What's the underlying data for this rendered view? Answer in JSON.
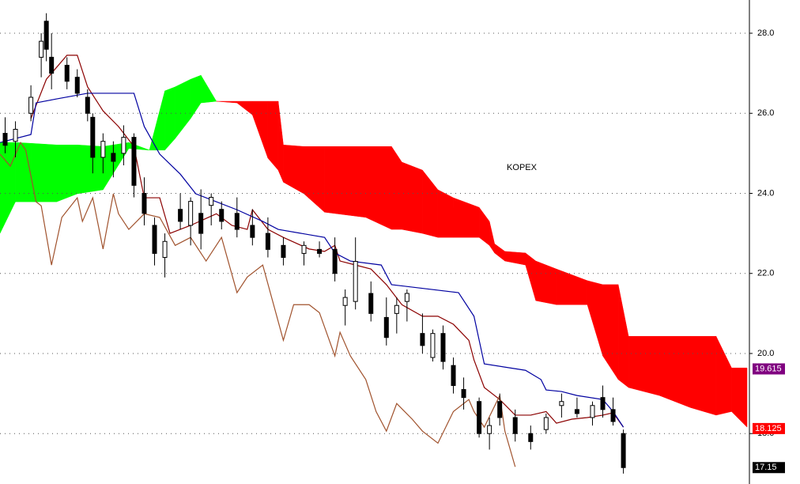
{
  "chart_data": {
    "type": "candlestick",
    "title": "KOPEX",
    "xlim": [
      0,
      145
    ],
    "ylim": [
      16.74,
      28.83
    ],
    "yticks": [
      {
        "value": 18,
        "label": "18.0"
      },
      {
        "value": 20,
        "label": "20.0"
      },
      {
        "value": 22,
        "label": "22.0"
      },
      {
        "value": 24,
        "label": "24.0"
      },
      {
        "value": 26,
        "label": "26.0"
      },
      {
        "value": 28,
        "label": "28.0"
      }
    ],
    "grid": true,
    "candles": {
      "up_color": "#ffffff",
      "down_color": "#000000",
      "x": [
        1,
        3,
        6,
        8,
        9,
        10,
        13,
        15,
        17,
        18,
        20,
        22,
        24,
        26,
        28,
        30,
        32,
        35,
        37,
        39,
        41,
        43,
        46,
        49,
        52,
        55,
        59,
        62,
        65,
        67,
        69,
        72,
        75,
        77,
        79,
        82,
        84,
        86,
        88,
        90,
        93,
        95,
        97,
        100,
        103,
        106,
        109,
        112,
        115,
        117,
        119,
        121
      ],
      "open": [
        25.5,
        25.3,
        26.0,
        27.4,
        28.3,
        27.4,
        27.2,
        26.9,
        26.4,
        25.9,
        24.9,
        25.0,
        25.0,
        25.4,
        24.0,
        23.2,
        22.4,
        23.6,
        23.2,
        23.5,
        23.7,
        23.6,
        23.5,
        23.2,
        23.0,
        22.7,
        22.5,
        22.6,
        22.6,
        21.2,
        21.3,
        21.5,
        20.9,
        21.0,
        21.3,
        20.5,
        19.9,
        20.5,
        19.7,
        19.1,
        18.8,
        18.0,
        18.8,
        18.4,
        18.0,
        18.1,
        18.7,
        18.6,
        18.4,
        18.9,
        18.6,
        18.0
      ],
      "high": [
        25.9,
        25.8,
        26.7,
        28.0,
        28.5,
        28.0,
        27.4,
        27.1,
        26.6,
        26.0,
        25.5,
        25.3,
        25.7,
        25.5,
        24.4,
        23.4,
        23.0,
        24.0,
        23.9,
        24.1,
        24.0,
        23.8,
        23.9,
        23.6,
        23.4,
        22.9,
        22.8,
        22.8,
        22.9,
        21.6,
        22.9,
        21.8,
        21.4,
        21.4,
        21.6,
        21.0,
        20.6,
        20.7,
        19.9,
        19.4,
        18.9,
        18.4,
        19.0,
        18.6,
        18.2,
        18.5,
        19.0,
        18.9,
        18.8,
        19.2,
        18.9,
        18.1
      ],
      "low": [
        25.0,
        24.9,
        25.8,
        26.9,
        27.3,
        26.6,
        26.6,
        26.4,
        25.8,
        24.5,
        24.5,
        24.4,
        24.7,
        23.9,
        23.2,
        22.2,
        21.9,
        23.1,
        22.7,
        22.6,
        23.2,
        23.1,
        22.9,
        22.7,
        22.4,
        22.2,
        22.2,
        22.4,
        21.8,
        20.7,
        21.1,
        20.8,
        20.2,
        20.5,
        20.8,
        20.0,
        19.8,
        19.6,
        19.0,
        18.6,
        17.9,
        17.6,
        18.2,
        17.8,
        17.6,
        18.0,
        18.4,
        18.4,
        18.2,
        18.4,
        18.2,
        17.0
      ],
      "close": [
        25.2,
        25.6,
        26.4,
        27.8,
        27.6,
        27.0,
        26.8,
        26.5,
        26.0,
        24.9,
        25.3,
        24.8,
        25.4,
        24.2,
        23.5,
        22.5,
        22.8,
        23.3,
        23.8,
        23.0,
        23.9,
        23.3,
        23.1,
        22.9,
        22.6,
        22.4,
        22.7,
        22.5,
        22.0,
        21.4,
        22.3,
        21.0,
        20.4,
        21.2,
        21.5,
        20.2,
        20.5,
        19.8,
        19.2,
        18.9,
        18.0,
        18.2,
        18.4,
        18.0,
        17.8,
        18.4,
        18.8,
        18.5,
        18.7,
        18.6,
        18.3,
        17.15
      ]
    },
    "cloud": {
      "up_color": "#00ff00",
      "down_color": "#ff0000",
      "x": [
        0,
        3,
        6,
        11,
        15,
        20,
        25,
        29,
        32,
        34,
        37,
        39,
        42,
        46,
        49,
        52,
        54,
        55,
        59,
        63,
        71,
        76,
        78,
        82,
        85,
        88,
        93,
        95,
        96,
        98,
        102,
        104,
        108,
        114,
        117,
        120,
        122,
        128,
        134,
        139,
        142,
        145
      ],
      "span_a": [
        25.27,
        25.27,
        25.25,
        25.21,
        25.21,
        25.17,
        25.27,
        25.08,
        26.56,
        26.66,
        26.85,
        26.95,
        26.3,
        26.26,
        25.96,
        24.88,
        24.58,
        24.28,
        23.99,
        23.53,
        23.4,
        23.1,
        23.1,
        23.0,
        22.9,
        22.9,
        22.9,
        22.7,
        22.51,
        22.31,
        22.21,
        21.32,
        21.22,
        21.22,
        19.94,
        19.35,
        19.15,
        18.95,
        18.65,
        18.46,
        18.55,
        18.16
      ],
      "span_b": [
        23.0,
        23.79,
        23.79,
        23.79,
        23.99,
        24.09,
        25.12,
        25.08,
        25.08,
        25.37,
        25.87,
        26.26,
        26.3,
        26.3,
        26.3,
        26.3,
        26.3,
        25.21,
        25.17,
        25.17,
        25.17,
        25.17,
        24.78,
        24.58,
        24.09,
        23.89,
        23.65,
        23.3,
        22.74,
        22.55,
        22.51,
        22.31,
        22.11,
        21.82,
        21.72,
        21.72,
        20.43,
        20.43,
        20.43,
        20.43,
        19.64,
        19.64
      ]
    },
    "series": [
      {
        "color": "#8b0000",
        "x": [
          6,
          9,
          13,
          15,
          17,
          20,
          23,
          26,
          28,
          31,
          33,
          37,
          42,
          45,
          48,
          49,
          52,
          55,
          60,
          63,
          65,
          66,
          69,
          72,
          75,
          78,
          82,
          85,
          88,
          91,
          92,
          94,
          97,
          100,
          103,
          106,
          108,
          111,
          114,
          117,
          119,
          121
        ],
        "values": [
          25.87,
          26.85,
          27.45,
          27.45,
          26.66,
          26.06,
          25.67,
          25.17,
          23.89,
          23.89,
          23.0,
          23.2,
          23.49,
          23.2,
          23.1,
          23.59,
          23.1,
          22.9,
          22.61,
          22.55,
          22.7,
          22.31,
          22.21,
          22.11,
          21.72,
          21.22,
          20.93,
          20.93,
          20.73,
          20.33,
          19.84,
          19.15,
          18.85,
          18.46,
          18.46,
          18.55,
          18.26,
          18.36,
          18.4,
          18.46,
          18.52,
          18.16
        ]
      },
      {
        "color": "#0000a0",
        "x": [
          0,
          6,
          7,
          11,
          17,
          26,
          28,
          31,
          35,
          38,
          46,
          51,
          54,
          63,
          65,
          68,
          74,
          76,
          89,
          92,
          94,
          102,
          105,
          106,
          109,
          112,
          117,
          119,
          121
        ],
        "values": [
          25.27,
          25.47,
          26.26,
          26.36,
          26.5,
          26.5,
          25.67,
          24.98,
          24.48,
          23.99,
          23.59,
          23.3,
          23.1,
          22.9,
          22.51,
          22.31,
          22.21,
          21.72,
          21.52,
          20.93,
          19.74,
          19.58,
          19.35,
          19.09,
          19.05,
          18.95,
          18.85,
          18.55,
          18.16
        ]
      },
      {
        "color": "#a0522d",
        "x": [
          0,
          2,
          4,
          5,
          7,
          8,
          10,
          12,
          15,
          16,
          18,
          20,
          22,
          23,
          25,
          28,
          31,
          34,
          37,
          40,
          43,
          46,
          48,
          51,
          55,
          57,
          60,
          62,
          65,
          66,
          68,
          71,
          73,
          75,
          77,
          80,
          82,
          85,
          88,
          91,
          92,
          94,
          97,
          98,
          100
        ],
        "values": [
          24.98,
          24.68,
          25.27,
          25.08,
          23.79,
          23.69,
          22.21,
          23.4,
          23.89,
          23.3,
          23.89,
          22.61,
          23.99,
          23.49,
          23.1,
          23.49,
          23.4,
          22.7,
          22.9,
          22.31,
          22.9,
          21.52,
          21.91,
          22.21,
          20.33,
          21.22,
          21.22,
          21.02,
          19.94,
          20.53,
          19.94,
          19.35,
          18.55,
          18.06,
          18.75,
          18.36,
          18.06,
          17.76,
          18.55,
          18.85,
          18.55,
          18.16,
          18.95,
          18.06,
          17.17
        ]
      }
    ],
    "markers": [
      {
        "value": 19.615,
        "color": "#800080"
      },
      {
        "value": 18.125,
        "color": "#ff0000"
      },
      {
        "value": 17.15,
        "color": "#000000"
      }
    ]
  }
}
